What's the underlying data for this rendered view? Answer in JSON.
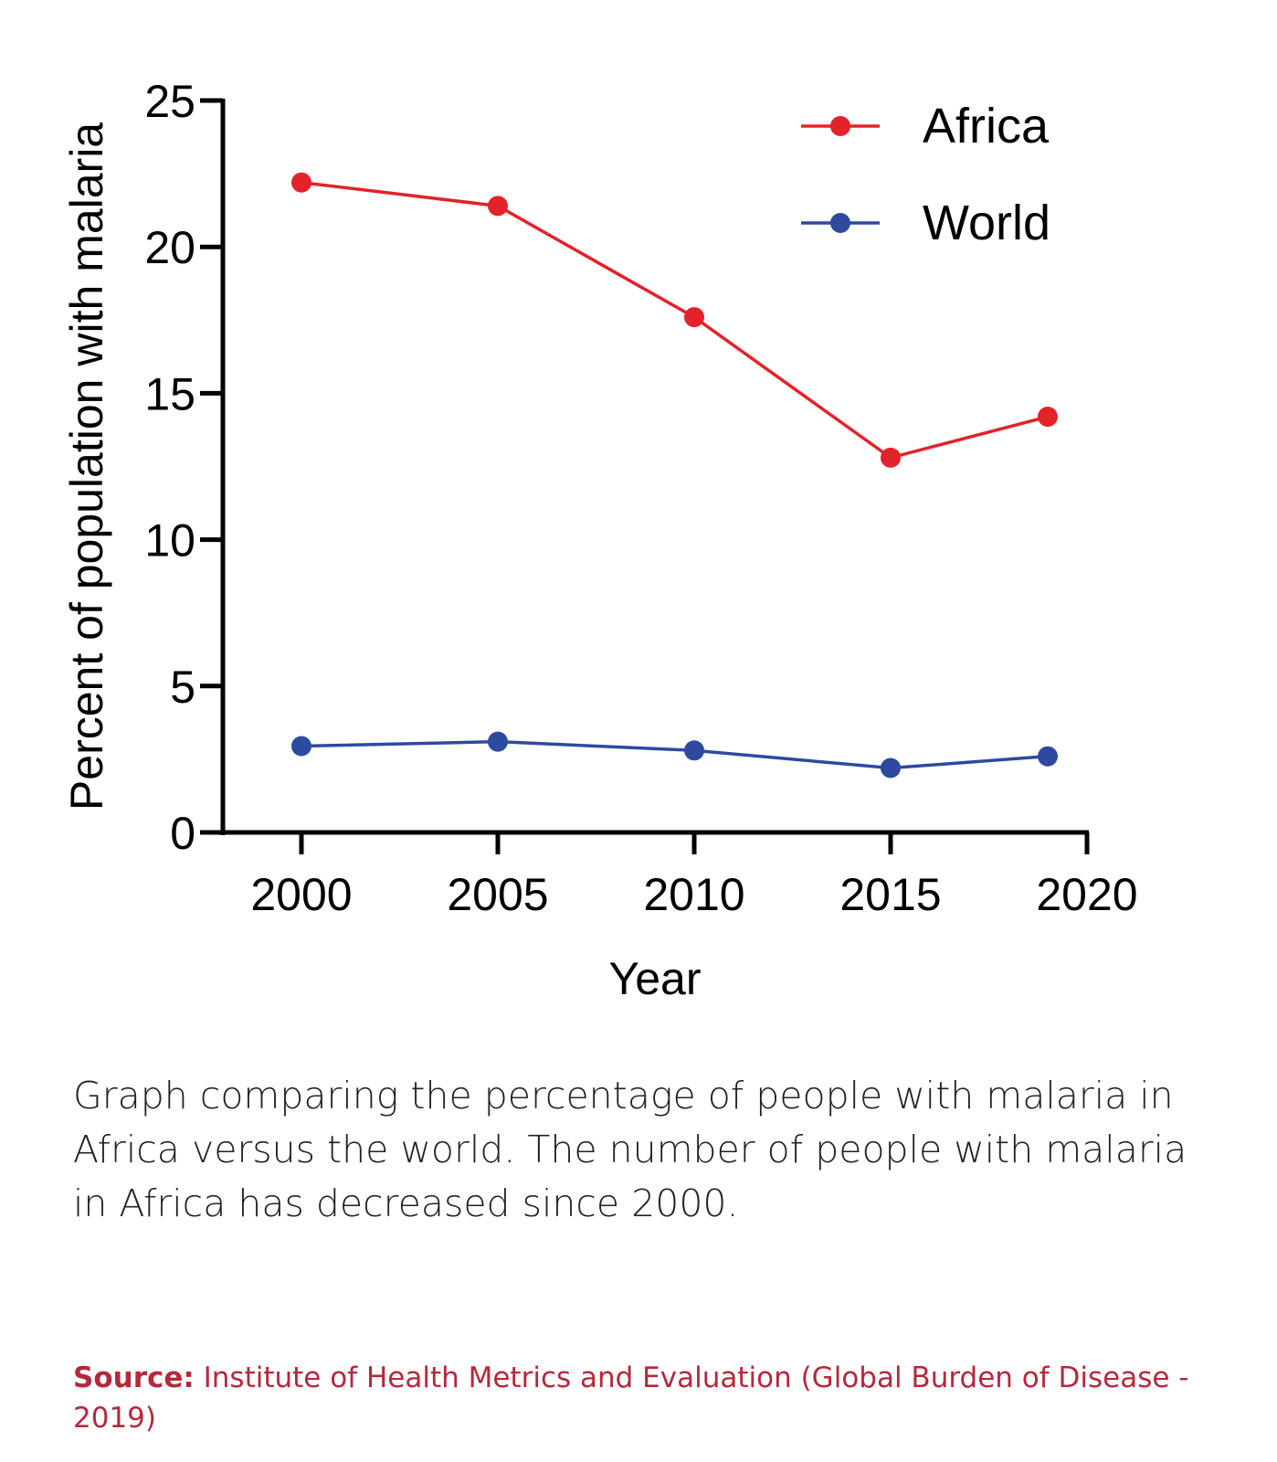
{
  "chart_data": {
    "type": "line",
    "x": [
      2000,
      2005,
      2010,
      2015,
      2019
    ],
    "series": [
      {
        "name": "Africa",
        "color": "#e32229",
        "values": [
          22.2,
          21.4,
          17.6,
          12.8,
          14.2
        ]
      },
      {
        "name": "World",
        "color": "#2e4a9e",
        "values": [
          2.95,
          3.1,
          2.8,
          2.2,
          2.6
        ]
      }
    ],
    "xlabel": "Year",
    "ylabel": "Percent of population with malaria",
    "xlim": [
      1998,
      2020
    ],
    "ylim": [
      0,
      25
    ],
    "xticks": [
      2000,
      2005,
      2010,
      2015,
      2020
    ],
    "yticks": [
      0,
      5,
      10,
      15,
      20,
      25
    ],
    "grid": false,
    "legend_position": "top-right"
  },
  "caption": "Graph comparing the percentage of people with malaria in Africa versus the world. The number of people with malaria in Africa has decreased since 2000.",
  "source": {
    "label": "Source:",
    "text": "Institute of Health Metrics and Evaluation (Global Burden of Disease - 2019)",
    "color": "#b5283d"
  }
}
